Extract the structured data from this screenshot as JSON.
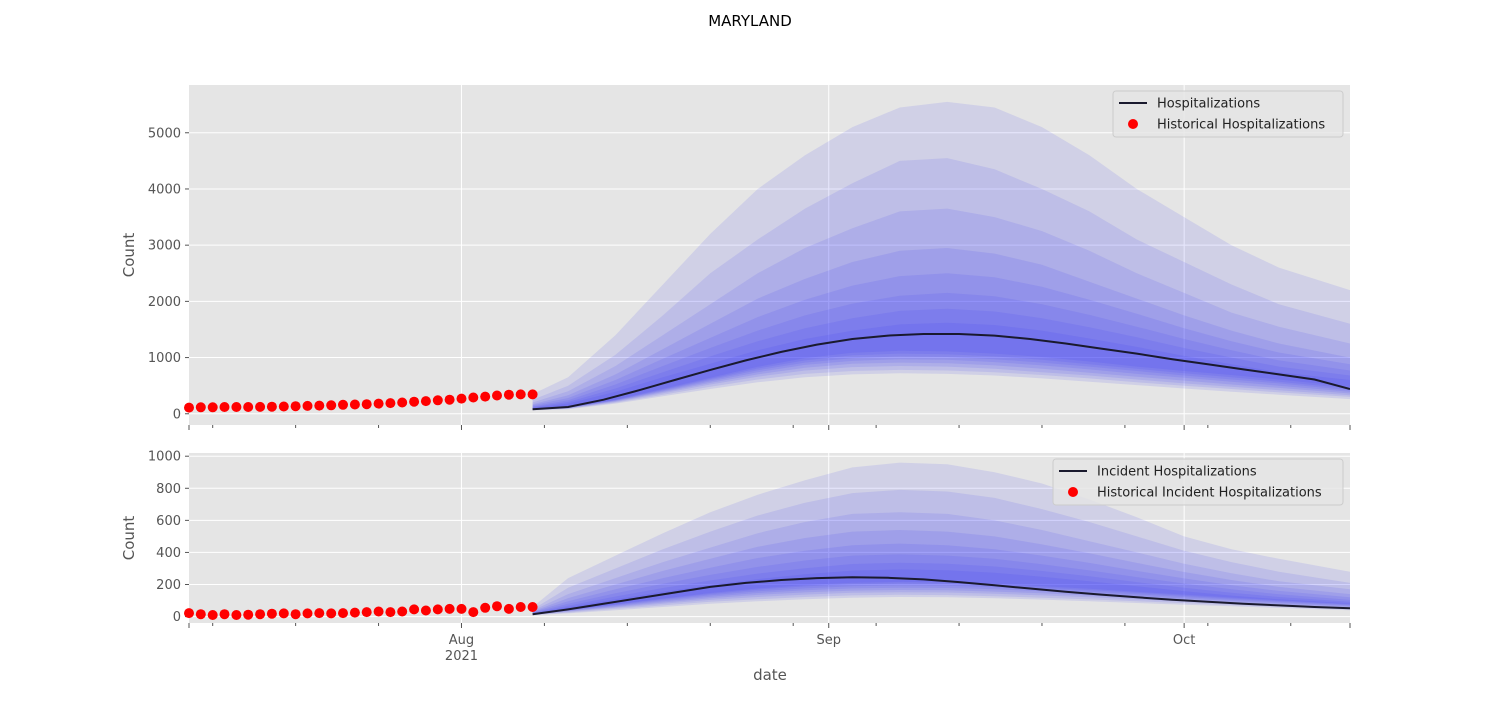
{
  "figure": {
    "title": "MARYLAND",
    "xlabel": "date"
  },
  "colors": {
    "background": "#e5e5e5",
    "grid": "#ffffff",
    "median_line": "#1a1a2e",
    "fan": "#2a2af5",
    "historical": "#ff0000",
    "tick_text": "#555555",
    "label_text": "#555555"
  },
  "x_axis": {
    "ticks": [
      {
        "date": "2021-08-01",
        "label": "Aug",
        "sublabel": "2021"
      },
      {
        "date": "2021-09-01",
        "label": "Sep",
        "sublabel": ""
      },
      {
        "date": "2021-10-01",
        "label": "Oct",
        "sublabel": ""
      }
    ],
    "range": [
      "2021-07-09",
      "2021-10-15"
    ]
  },
  "chart_data": [
    {
      "type": "area",
      "ylabel": "Count",
      "ylim": [
        -200,
        5850
      ],
      "yticks": [
        0,
        1000,
        2000,
        3000,
        4000,
        5000
      ],
      "grid": true,
      "legend_position": "top-right",
      "legend": [
        "Hospitalizations",
        "Historical Hospitalizations"
      ],
      "historical": {
        "name": "Historical Hospitalizations",
        "x": [
          "2021-07-09",
          "2021-07-10",
          "2021-07-11",
          "2021-07-12",
          "2021-07-13",
          "2021-07-14",
          "2021-07-15",
          "2021-07-16",
          "2021-07-17",
          "2021-07-18",
          "2021-07-19",
          "2021-07-20",
          "2021-07-21",
          "2021-07-22",
          "2021-07-23",
          "2021-07-24",
          "2021-07-25",
          "2021-07-26",
          "2021-07-27",
          "2021-07-28",
          "2021-07-29",
          "2021-07-30",
          "2021-07-31",
          "2021-08-01",
          "2021-08-02",
          "2021-08-03",
          "2021-08-04",
          "2021-08-05",
          "2021-08-06",
          "2021-08-07"
        ],
        "y": [
          110,
          115,
          115,
          120,
          120,
          120,
          122,
          125,
          130,
          135,
          140,
          145,
          150,
          160,
          165,
          170,
          180,
          190,
          200,
          215,
          225,
          240,
          250,
          270,
          290,
          305,
          325,
          340,
          345,
          345
        ]
      },
      "median": {
        "name": "Hospitalizations",
        "x": [
          "2021-08-07",
          "2021-08-10",
          "2021-08-13",
          "2021-08-16",
          "2021-08-19",
          "2021-08-22",
          "2021-08-25",
          "2021-08-28",
          "2021-08-31",
          "2021-09-03",
          "2021-09-06",
          "2021-09-09",
          "2021-09-12",
          "2021-09-15",
          "2021-09-18",
          "2021-09-21",
          "2021-09-24",
          "2021-09-27",
          "2021-09-30",
          "2021-10-03",
          "2021-10-06",
          "2021-10-09",
          "2021-10-12",
          "2021-10-15"
        ],
        "y": [
          80,
          120,
          250,
          420,
          600,
          780,
          950,
          1100,
          1230,
          1330,
          1390,
          1420,
          1420,
          1390,
          1330,
          1250,
          1160,
          1070,
          970,
          880,
          790,
          700,
          610,
          440
        ]
      },
      "bands": {
        "x": [
          "2021-08-07",
          "2021-08-10",
          "2021-08-14",
          "2021-08-18",
          "2021-08-22",
          "2021-08-26",
          "2021-08-30",
          "2021-09-03",
          "2021-09-07",
          "2021-09-11",
          "2021-09-15",
          "2021-09-19",
          "2021-09-23",
          "2021-09-27",
          "2021-10-01",
          "2021-10-05",
          "2021-10-09",
          "2021-10-15"
        ],
        "quantiles": [
          {
            "lower": [
              60,
              80,
              180,
              310,
              440,
              560,
              650,
              700,
              720,
              710,
              680,
              630,
              570,
              510,
              450,
              390,
              340,
              260
            ],
            "upper": [
              350,
              650,
              1400,
              2300,
              3200,
              4000,
              4600,
              5100,
              5450,
              5550,
              5450,
              5100,
              4600,
              4000,
              3500,
              3000,
              2600,
              2200
            ]
          },
          {
            "lower": [
              65,
              90,
              195,
              340,
              480,
              610,
              710,
              760,
              780,
              770,
              740,
              690,
              630,
              560,
              500,
              440,
              380,
              300
            ],
            "upper": [
              250,
              500,
              1050,
              1750,
              2500,
              3100,
              3650,
              4100,
              4500,
              4550,
              4350,
              4000,
              3600,
              3100,
              2700,
              2300,
              1950,
              1600
            ]
          },
          {
            "lower": [
              70,
              95,
              210,
              365,
              520,
              660,
              770,
              830,
              850,
              840,
              800,
              740,
              680,
              610,
              540,
              480,
              420,
              330
            ],
            "upper": [
              200,
              400,
              850,
              1400,
              1950,
              2500,
              2950,
              3300,
              3600,
              3650,
              3500,
              3250,
              2900,
              2500,
              2150,
              1800,
              1550,
              1250
            ]
          },
          {
            "lower": [
              72,
              100,
              220,
              385,
              550,
              700,
              820,
              890,
              910,
              900,
              860,
              800,
              730,
              660,
              590,
              520,
              460,
              360
            ],
            "upper": [
              170,
              330,
              700,
              1150,
              1600,
              2050,
              2400,
              2700,
              2900,
              2950,
              2850,
              2650,
              2350,
              2050,
              1750,
              1480,
              1250,
              1000
            ]
          },
          {
            "lower": [
              74,
              105,
              230,
              400,
              575,
              740,
              870,
              940,
              970,
              960,
              920,
              860,
              790,
              710,
              640,
              570,
              500,
              390
            ],
            "upper": [
              150,
              280,
              600,
              980,
              1350,
              1720,
              2030,
              2280,
              2450,
              2500,
              2430,
              2260,
              2030,
              1780,
              1520,
              1290,
              1090,
              880
            ]
          },
          {
            "lower": [
              76,
              108,
              238,
              415,
              600,
              775,
              910,
              990,
              1020,
              1010,
              970,
              910,
              840,
              760,
              680,
              610,
              540,
              420
            ],
            "upper": [
              130,
              240,
              520,
              850,
              1170,
              1480,
              1750,
              1960,
              2100,
              2150,
              2090,
              1950,
              1760,
              1550,
              1330,
              1130,
              950,
              770
            ]
          },
          {
            "lower": [
              78,
              112,
              245,
              430,
              620,
              805,
              950,
              1040,
              1070,
              1060,
              1020,
              960,
              880,
              800,
              720,
              650,
              570,
              450
            ],
            "upper": [
              115,
              210,
              450,
              740,
              1020,
              1290,
              1520,
              1700,
              1830,
              1870,
              1820,
              1700,
              1540,
              1360,
              1170,
              1000,
              840,
              680
            ]
          },
          {
            "lower": [
              80,
              115,
              252,
              445,
              640,
              835,
              990,
              1085,
              1120,
              1110,
              1070,
              1010,
              930,
              840,
              760,
              690,
              610,
              480
            ],
            "upper": [
              100,
              180,
              390,
              650,
              890,
              1130,
              1330,
              1480,
              1590,
              1620,
              1580,
              1480,
              1340,
              1190,
              1030,
              880,
              740,
              600
            ]
          }
        ]
      }
    },
    {
      "type": "area",
      "ylabel": "Count",
      "ylim": [
        -40,
        1020
      ],
      "yticks": [
        0,
        200,
        400,
        600,
        800,
        1000
      ],
      "grid": true,
      "legend_position": "top-right",
      "legend": [
        "Incident Hospitalizations",
        "Historical Incident Hospitalizations"
      ],
      "historical": {
        "name": "Historical Incident Hospitalizations",
        "x": [
          "2021-07-09",
          "2021-07-10",
          "2021-07-11",
          "2021-07-12",
          "2021-07-13",
          "2021-07-14",
          "2021-07-15",
          "2021-07-16",
          "2021-07-17",
          "2021-07-18",
          "2021-07-19",
          "2021-07-20",
          "2021-07-21",
          "2021-07-22",
          "2021-07-23",
          "2021-07-24",
          "2021-07-25",
          "2021-07-26",
          "2021-07-27",
          "2021-07-28",
          "2021-07-29",
          "2021-07-30",
          "2021-07-31",
          "2021-08-01",
          "2021-08-02",
          "2021-08-03",
          "2021-08-04",
          "2021-08-05",
          "2021-08-06",
          "2021-08-07"
        ],
        "y": [
          22,
          15,
          10,
          15,
          10,
          12,
          15,
          18,
          20,
          15,
          20,
          22,
          20,
          22,
          25,
          28,
          32,
          28,
          32,
          45,
          38,
          45,
          48,
          48,
          28,
          55,
          65,
          48,
          60,
          60
        ]
      },
      "median": {
        "name": "Incident Hospitalizations",
        "x": [
          "2021-08-07",
          "2021-08-10",
          "2021-08-13",
          "2021-08-16",
          "2021-08-19",
          "2021-08-22",
          "2021-08-25",
          "2021-08-28",
          "2021-08-31",
          "2021-09-03",
          "2021-09-06",
          "2021-09-09",
          "2021-09-12",
          "2021-09-15",
          "2021-09-18",
          "2021-09-21",
          "2021-09-24",
          "2021-09-27",
          "2021-09-30",
          "2021-10-03",
          "2021-10-06",
          "2021-10-09",
          "2021-10-12",
          "2021-10-15"
        ],
        "y": [
          15,
          45,
          80,
          115,
          150,
          185,
          210,
          228,
          240,
          245,
          242,
          232,
          215,
          195,
          175,
          155,
          137,
          120,
          105,
          92,
          80,
          70,
          60,
          52
        ]
      },
      "bands": {
        "x": [
          "2021-08-07",
          "2021-08-10",
          "2021-08-14",
          "2021-08-18",
          "2021-08-22",
          "2021-08-26",
          "2021-08-30",
          "2021-09-03",
          "2021-09-07",
          "2021-09-11",
          "2021-09-15",
          "2021-09-19",
          "2021-09-23",
          "2021-09-27",
          "2021-10-01",
          "2021-10-05",
          "2021-10-09",
          "2021-10-15"
        ],
        "quantiles": [
          {
            "lower": [
              8,
              20,
              40,
              60,
              80,
              95,
              108,
              118,
              122,
              120,
              114,
              106,
              96,
              85,
              74,
              64,
              54,
              40
            ],
            "upper": [
              60,
              240,
              380,
              520,
              650,
              760,
              850,
              930,
              960,
              950,
              900,
              830,
              730,
              620,
              500,
              420,
              360,
              280
            ]
          },
          {
            "lower": [
              10,
              25,
              48,
              70,
              92,
              108,
              122,
              132,
              136,
              134,
              127,
              118,
              107,
              95,
              84,
              72,
              62,
              46
            ],
            "upper": [
              45,
              180,
              300,
              420,
              530,
              630,
              710,
              770,
              790,
              780,
              740,
              670,
              590,
              500,
              410,
              340,
              280,
              210
            ]
          },
          {
            "lower": [
              11,
              30,
              55,
              80,
              104,
              122,
              137,
              148,
              152,
              150,
              142,
              132,
              120,
              107,
              94,
              81,
              70,
              52
            ],
            "upper": [
              38,
              140,
              240,
              340,
              430,
              520,
              590,
              640,
              650,
              640,
              600,
              540,
              470,
              400,
              330,
              270,
              220,
              170
            ]
          },
          {
            "lower": [
              12,
              33,
              60,
              88,
              114,
              135,
              151,
              162,
              166,
              164,
              156,
              145,
              131,
              117,
              103,
              89,
              77,
              58
            ],
            "upper": [
              32,
              115,
              200,
              285,
              360,
              435,
              490,
              530,
              540,
              530,
              500,
              450,
              395,
              335,
              278,
              228,
              185,
              140
            ]
          },
          {
            "lower": [
              13,
              36,
              65,
              96,
              124,
              147,
              164,
              176,
              180,
              178,
              170,
              158,
              143,
              128,
              113,
              98,
              84,
              64
            ],
            "upper": [
              28,
              95,
              170,
              240,
              305,
              365,
              410,
              445,
              455,
              445,
              420,
              380,
              335,
              285,
              238,
              196,
              160,
              120
            ]
          },
          {
            "lower": [
              14,
              39,
              70,
              103,
              133,
              158,
              176,
              189,
              194,
              192,
              183,
              170,
              155,
              139,
              122,
              106,
              91,
              70
            ],
            "upper": [
              24,
              80,
              145,
              205,
              260,
              310,
              350,
              380,
              388,
              380,
              360,
              326,
              288,
              246,
              206,
              170,
              139,
              104
            ]
          },
          {
            "lower": [
              14,
              41,
              74,
              109,
              141,
              168,
              188,
              201,
              206,
              204,
              195,
              181,
              165,
              148,
              130,
              113,
              97,
              75
            ],
            "upper": [
              21,
              68,
              125,
              178,
              225,
              268,
              302,
              328,
              336,
              330,
              312,
              284,
              251,
              215,
              180,
              149,
              122,
              92
            ]
          },
          {
            "lower": [
              15,
              43,
              77,
              113,
              147,
              176,
              197,
              211,
              216,
              214,
              205,
              190,
              173,
              155,
              137,
              119,
              102,
              79
            ],
            "upper": [
              18,
              58,
              108,
              155,
              197,
              234,
              264,
              287,
              294,
              289,
              273,
              249,
              220,
              189,
              159,
              131,
              108,
              82
            ]
          }
        ]
      }
    }
  ]
}
